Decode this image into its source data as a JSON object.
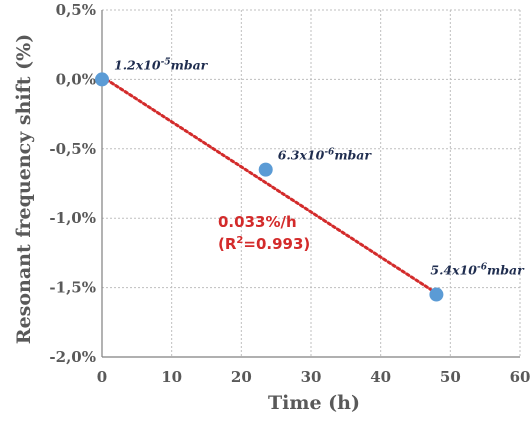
{
  "chart_data": {
    "type": "scatter",
    "xlabel": "Time (h)",
    "ylabel": "Resonant frequency shift (%)",
    "xlim": [
      0,
      60
    ],
    "ylim": [
      -2.0,
      0.5
    ],
    "x_ticks": [
      {
        "value": 0,
        "label": "0"
      },
      {
        "value": 10,
        "label": "10"
      },
      {
        "value": 20,
        "label": "20"
      },
      {
        "value": 30,
        "label": "30"
      },
      {
        "value": 40,
        "label": "40"
      },
      {
        "value": 50,
        "label": "50"
      },
      {
        "value": 60,
        "label": "60"
      }
    ],
    "y_ticks": [
      {
        "value": 0.5,
        "label": "0,5%"
      },
      {
        "value": 0.0,
        "label": "0,0%"
      },
      {
        "value": -0.5,
        "label": "-0,5%"
      },
      {
        "value": -1.0,
        "label": "-1,0%"
      },
      {
        "value": -1.5,
        "label": "-1,5%"
      },
      {
        "value": -2.0,
        "label": "-2,0%"
      }
    ],
    "grid": true,
    "point_color": "#5b9bd5",
    "fit_color": "#d32b2b",
    "points": [
      {
        "x": 0,
        "y": 0.0,
        "label_base": "1.2x10",
        "label_exp": "-5",
        "label_unit": "mbar"
      },
      {
        "x": 23.5,
        "y": -0.65,
        "label_base": "6.3x10",
        "label_exp": "-6",
        "label_unit": "mbar"
      },
      {
        "x": 48,
        "y": -1.55,
        "label_base": "5.4x10",
        "label_exp": "-6",
        "label_unit": "mbar"
      }
    ],
    "fit": {
      "x": [
        0,
        48
      ],
      "y": [
        0.02,
        -1.54
      ],
      "label_line1": "0.033%/h",
      "label_line2_pre": "(R",
      "label_line2_sup": "2",
      "label_line2_post": "=0.993)"
    }
  }
}
